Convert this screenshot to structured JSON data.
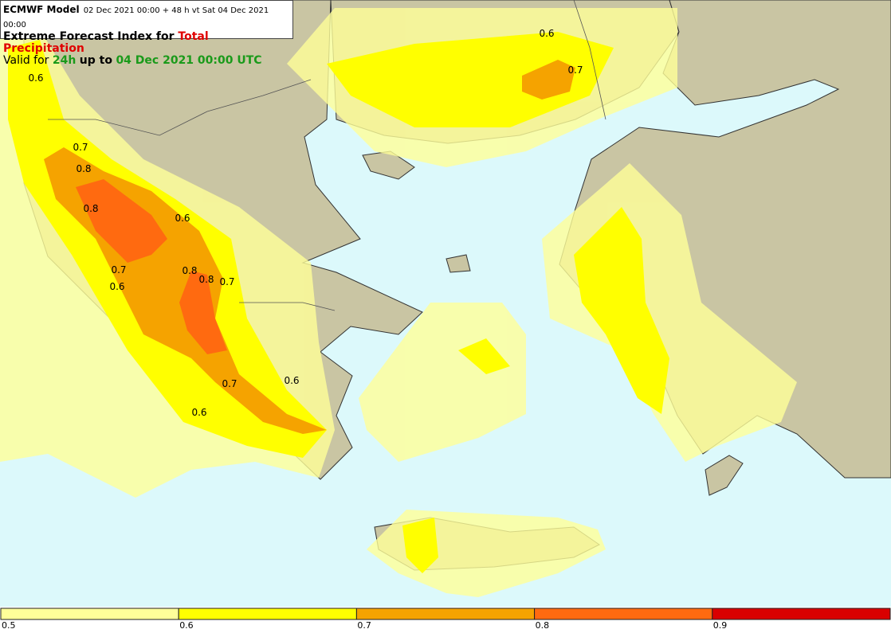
{
  "header": {
    "model": "ECMWF Model",
    "run": "02 Dec 2021 00:00 + 48 h vt Sat 04 Dec 2021 00:00",
    "title_prefix": "Extreme Forecast Index for",
    "parameter": "Total Precipitation",
    "valid_prefix": "Valid for",
    "period": "24h",
    "valid_mid": "up to",
    "valid_time": "04 Dec 2021 00:00 UTC"
  },
  "contour_labels": [
    "0.6",
    "0.7",
    "0.6",
    "0.7",
    "0.8",
    "0.8",
    "0.6",
    "0.7",
    "0.8",
    "0.8",
    "0.7",
    "0.6",
    "0.6",
    "0.7",
    "0.6"
  ],
  "colorbar": {
    "labels": [
      "0.5",
      "0.6",
      "0.7",
      "0.8",
      "0.9"
    ],
    "colors": [
      "#ffff99",
      "#ffff00",
      "#f5a300",
      "#ff6a10",
      "#d90000"
    ]
  }
}
